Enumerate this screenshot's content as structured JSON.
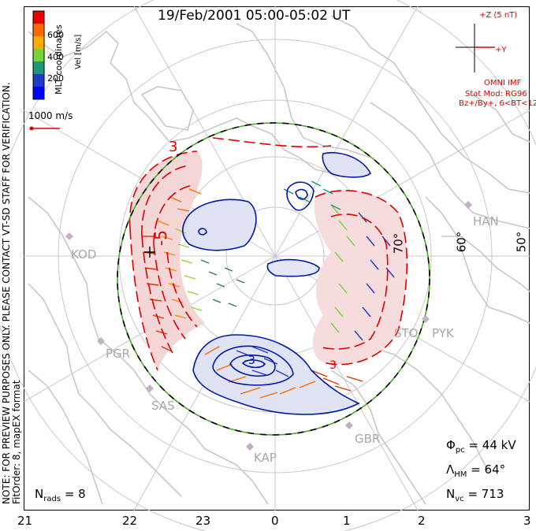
{
  "title": "19/Feb/2001 05:00-05:02 UT",
  "side_text": {
    "line1": "NOTE: FOR PREVIEW PURPOSES ONLY. PLEASE CONTACT VT-SD STAFF FOR VERIFICATION.",
    "line2": "FitOrder: 8, mapEX format"
  },
  "coordinates_label": "MLT coordinates",
  "colorbar": {
    "unit": "Vel [m/s]",
    "ticks": [
      "600",
      "400",
      "200"
    ],
    "colors": [
      "#e60000",
      "#ff6a00",
      "#ffaa00",
      "#78d23c",
      "#1e9678",
      "#1e3cc8",
      "#0000ff"
    ]
  },
  "scale_label": "1000 m/s",
  "imf": {
    "z_label": "+Z (5 nT)",
    "y_label": "+Y",
    "source": "OMNI IMF",
    "model": "Stat Mod: RG96",
    "condition": "Bz+/By+, 6<BT<12"
  },
  "stats": {
    "phi_symbol": "Φ",
    "phi_sub": "pc",
    "phi_value": "= 44 kV",
    "lambda_symbol": "Λ",
    "lambda_sub": "HM",
    "lambda_value": "= 64°",
    "n_symbol": "N",
    "nvc_sub": "vc",
    "nvc_value": "= 713",
    "nrads_sub": "rads",
    "nrads_value": "= 8"
  },
  "latitude_labels": [
    "70°",
    "60°",
    "50°"
  ],
  "hour_labels": [
    "21",
    "22",
    "23",
    "0",
    "1",
    "2",
    "3"
  ],
  "stations": [
    "KOD",
    "PGR",
    "SAS",
    "KAP",
    "GBR",
    "STO",
    "PYK",
    "HAN"
  ],
  "contour_labels": [
    "-3",
    "-5",
    "3"
  ],
  "colors": {
    "positive": "#e00000",
    "negative": "#0018a8",
    "hmb": "#44aa22",
    "grid": "#c8c8c8"
  }
}
